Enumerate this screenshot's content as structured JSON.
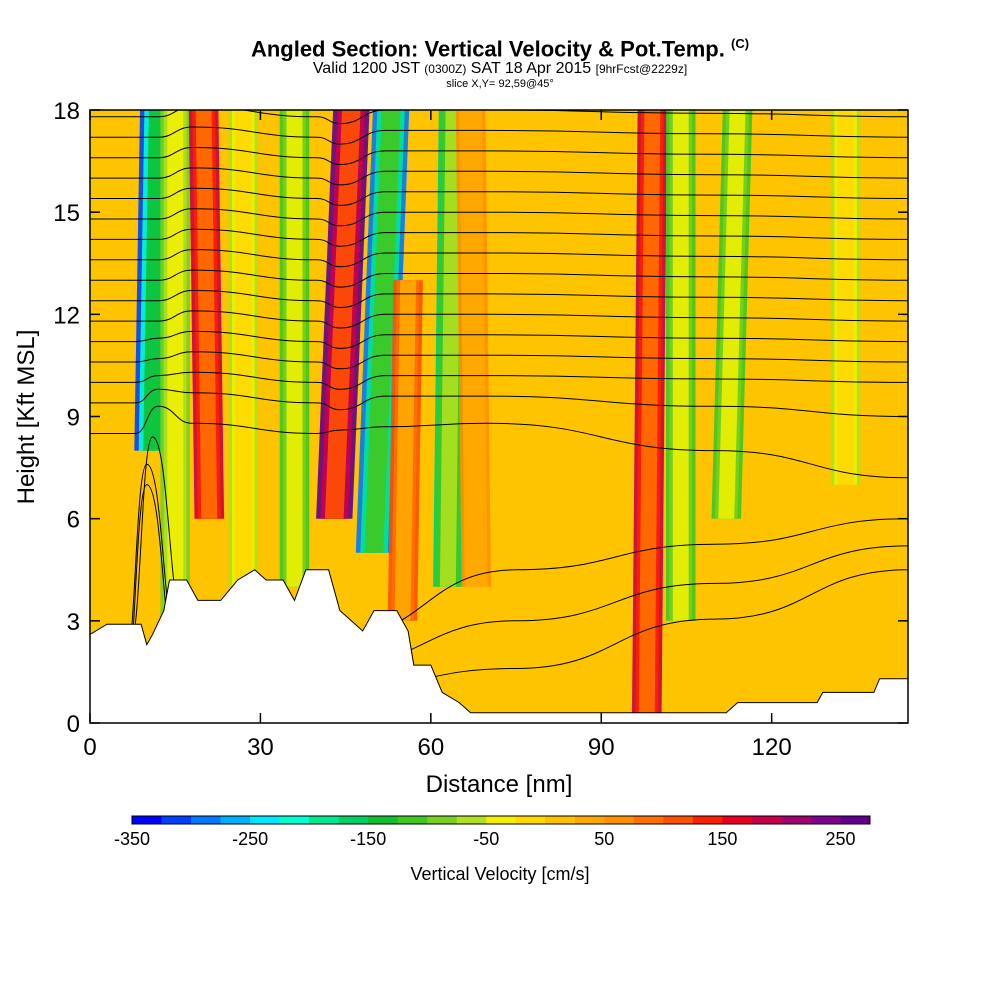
{
  "title": {
    "main": "Angled Section: Vertical Velocity & Pot.Temp.",
    "main_tag": "(C)",
    "valid_prefix": "Valid 1200 JST",
    "valid_utc": "(0300Z)",
    "valid_date": "SAT 18 Apr 2015",
    "valid_fcst": "[9hrFcst@2229z]",
    "slice": "slice X,Y= 92,59@45°"
  },
  "chart_data": {
    "type": "heatmap",
    "xlabel": "Distance [nm]",
    "ylabel": "Height [Kft MSL]",
    "xlim": [
      0,
      144
    ],
    "ylim": [
      0,
      18
    ],
    "x_ticks": [
      "0",
      "30",
      "60",
      "90",
      "120"
    ],
    "x_tick_values": [
      0,
      30,
      60,
      90,
      120
    ],
    "y_ticks": [
      "0",
      "3",
      "6",
      "9",
      "12",
      "15",
      "18"
    ],
    "y_tick_values": [
      0,
      3,
      6,
      9,
      12,
      15,
      18
    ],
    "colorbar": {
      "label": "Vertical Velocity [cm/s]",
      "min": -350,
      "max": 275,
      "step": 25,
      "tick_labels": [
        "-350",
        "-250",
        "-150",
        "-50",
        "50",
        "150",
        "250"
      ],
      "tick_values": [
        -350,
        -250,
        -150,
        -50,
        50,
        150,
        250
      ],
      "colors": [
        "#0000ff",
        "#0040ff",
        "#0078ff",
        "#00b0ff",
        "#00e8ff",
        "#00ffd0",
        "#00e890",
        "#00d060",
        "#10c030",
        "#40c820",
        "#78d020",
        "#b0e020",
        "#f0f000",
        "#ffd800",
        "#ffc000",
        "#ffa800",
        "#ff9000",
        "#ff7000",
        "#ff5000",
        "#ff2000",
        "#e80020",
        "#c80048",
        "#a00070",
        "#800090",
        "#600090"
      ]
    },
    "vertical_velocity_features": [
      {
        "x": 11,
        "x_top": 12,
        "z_bottom": 8,
        "z_top": 18,
        "w": -320
      },
      {
        "x": 15,
        "x_top": 15,
        "z_bottom": 3,
        "z_top": 18,
        "w": -90
      },
      {
        "x": 21,
        "x_top": 20,
        "z_bottom": 6,
        "z_top": 18,
        "w": 190
      },
      {
        "x": 27,
        "x_top": 27,
        "z_bottom": 4,
        "z_top": 18,
        "w": -60
      },
      {
        "x": 36,
        "x_top": 36,
        "z_bottom": 4,
        "z_top": 18,
        "w": -110
      },
      {
        "x": 43,
        "x_top": 46,
        "z_bottom": 6,
        "z_top": 18,
        "w": 270
      },
      {
        "x": 50,
        "x_top": 53,
        "z_bottom": 5,
        "z_top": 18,
        "w": -280
      },
      {
        "x": 55,
        "x_top": 56,
        "z_bottom": 3,
        "z_top": 13,
        "w": 110
      },
      {
        "x": 63,
        "x_top": 64,
        "z_bottom": 4,
        "z_top": 18,
        "w": -160
      },
      {
        "x": 68,
        "x_top": 67,
        "z_bottom": 4,
        "z_top": 18,
        "w": 70
      },
      {
        "x": 98,
        "x_top": 99,
        "z_bottom": 0,
        "z_top": 18,
        "w": 190
      },
      {
        "x": 104,
        "x_top": 104,
        "z_bottom": 3,
        "z_top": 18,
        "w": -110
      },
      {
        "x": 112,
        "x_top": 114,
        "z_bottom": 6,
        "z_top": 18,
        "w": -120
      },
      {
        "x": 133,
        "x_top": 133,
        "z_bottom": 7,
        "z_top": 18,
        "w": -60
      }
    ],
    "terrain": [
      [
        0,
        2.6
      ],
      [
        3,
        2.9
      ],
      [
        9,
        2.9
      ],
      [
        10,
        2.3
      ],
      [
        11,
        2.6
      ],
      [
        13,
        3.3
      ],
      [
        14,
        4.2
      ],
      [
        17,
        4.2
      ],
      [
        19,
        3.6
      ],
      [
        23,
        3.6
      ],
      [
        26,
        4.2
      ],
      [
        29,
        4.5
      ],
      [
        31,
        4.2
      ],
      [
        34,
        4.2
      ],
      [
        36,
        3.6
      ],
      [
        38,
        4.5
      ],
      [
        42,
        4.5
      ],
      [
        44,
        3.3
      ],
      [
        46,
        3.0
      ],
      [
        48,
        2.7
      ],
      [
        50,
        3.3
      ],
      [
        54,
        3.3
      ],
      [
        56,
        2.7
      ],
      [
        57,
        1.7
      ],
      [
        60,
        1.7
      ],
      [
        62,
        0.9
      ],
      [
        65,
        0.6
      ],
      [
        67,
        0.3
      ],
      [
        90,
        0.3
      ],
      [
        100,
        0.3
      ],
      [
        112,
        0.3
      ],
      [
        114,
        0.6
      ],
      [
        128,
        0.6
      ],
      [
        129,
        0.9
      ],
      [
        138,
        0.9
      ],
      [
        139,
        1.3
      ],
      [
        144,
        1.3
      ]
    ],
    "contours": [
      {
        "base": 0.8,
        "trough": [
          10,
          7.0
        ],
        "mid": [
          35,
          0.8
        ],
        "east": [
          75,
          1.6
        ],
        "end": 4.5
      },
      {
        "base": 1.5,
        "trough": [
          10,
          7.6
        ],
        "mid": [
          35,
          1.5
        ],
        "east": [
          75,
          3.0
        ],
        "end": 5.2
      },
      {
        "base": 2.3,
        "trough": [
          11,
          8.4
        ],
        "mid": [
          35,
          2.3
        ],
        "east": [
          75,
          4.5
        ],
        "end": 6.0
      },
      {
        "base": 8.5,
        "trough": [
          12,
          9.3
        ],
        "mid": [
          44,
          8.6
        ],
        "east": [
          70,
          8.8
        ],
        "end": 7.2
      },
      {
        "base": 9.4,
        "trough": [
          12,
          9.8
        ],
        "mid": [
          44,
          9.2
        ],
        "east": [
          70,
          9.6
        ],
        "end": 9.0
      },
      {
        "base": 10.0,
        "trough": [
          12,
          10.2
        ],
        "mid": [
          44,
          9.8
        ],
        "east": [
          70,
          10.2
        ],
        "end": 10.0
      },
      {
        "base": 10.6,
        "trough": [
          12,
          10.7
        ],
        "mid": [
          44,
          10.4
        ],
        "east": [
          70,
          10.8
        ],
        "end": 10.6
      },
      {
        "base": 11.2,
        "trough": [
          12,
          11.3
        ],
        "mid": [
          44,
          11.0
        ],
        "east": [
          70,
          11.4
        ],
        "end": 11.2
      },
      {
        "base": 11.8,
        "trough": [
          12,
          11.8
        ],
        "mid": [
          44,
          11.6
        ],
        "east": [
          70,
          12.0
        ],
        "end": 11.8
      },
      {
        "base": 12.4,
        "trough": [
          12,
          12.4
        ],
        "mid": [
          44,
          12.2
        ],
        "east": [
          70,
          12.6
        ],
        "end": 12.4
      },
      {
        "base": 13.0,
        "trough": [
          12,
          13.0
        ],
        "mid": [
          44,
          12.8
        ],
        "east": [
          70,
          13.2
        ],
        "end": 13.0
      },
      {
        "base": 13.6,
        "trough": [
          12,
          13.6
        ],
        "mid": [
          44,
          13.4
        ],
        "east": [
          70,
          13.8
        ],
        "end": 13.6
      },
      {
        "base": 14.2,
        "trough": [
          12,
          14.2
        ],
        "mid": [
          44,
          14.0
        ],
        "east": [
          70,
          14.4
        ],
        "end": 14.2
      },
      {
        "base": 14.8,
        "trough": [
          12,
          14.8
        ],
        "mid": [
          44,
          14.6
        ],
        "east": [
          70,
          15.0
        ],
        "end": 14.8
      },
      {
        "base": 15.4,
        "trough": [
          12,
          15.4
        ],
        "mid": [
          44,
          15.2
        ],
        "east": [
          70,
          15.6
        ],
        "end": 15.4
      },
      {
        "base": 16.0,
        "trough": [
          12,
          16.0
        ],
        "mid": [
          44,
          15.8
        ],
        "east": [
          70,
          16.2
        ],
        "end": 16.0
      },
      {
        "base": 16.6,
        "trough": [
          12,
          16.6
        ],
        "mid": [
          44,
          16.4
        ],
        "east": [
          70,
          16.8
        ],
        "end": 16.6
      },
      {
        "base": 17.2,
        "trough": [
          12,
          17.2
        ],
        "mid": [
          44,
          17.0
        ],
        "east": [
          70,
          17.4
        ],
        "end": 17.2
      },
      {
        "base": 17.8,
        "trough": [
          12,
          17.8
        ],
        "mid": [
          44,
          17.6
        ],
        "east": [
          70,
          18.0
        ],
        "end": 17.8
      }
    ]
  }
}
